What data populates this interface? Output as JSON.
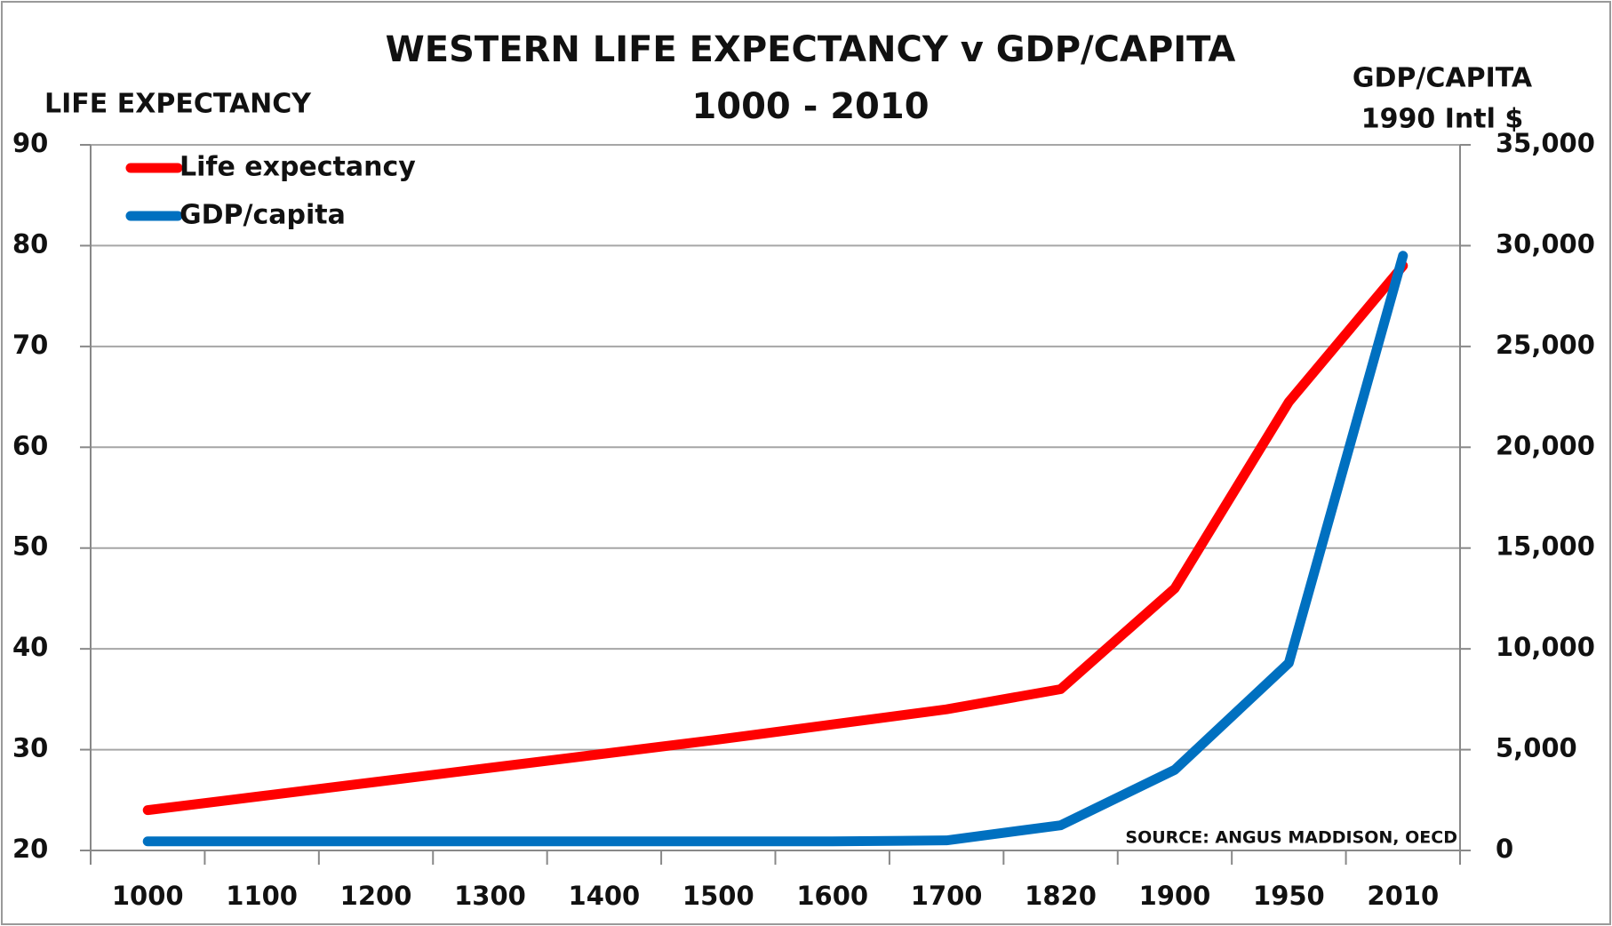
{
  "chart_data": {
    "type": "line",
    "title": "WESTERN LIFE EXPECTANCY v GDP/CAPITA",
    "subtitle": "1000 - 2010",
    "ylabel": "LIFE EXPECTANCY",
    "y2label": [
      "GDP/CAPITA",
      "1990 Intl $"
    ],
    "annotation": "SOURCE: ANGUS MADDISON, OECD",
    "categories": [
      "1000",
      "1100",
      "1200",
      "1300",
      "1400",
      "1500",
      "1600",
      "1700",
      "1820",
      "1900",
      "1950",
      "2010"
    ],
    "series": [
      {
        "name": "Life expectancy",
        "color": "#ff0000",
        "values": [
          24,
          25.4,
          26.8,
          28.2,
          29.6,
          31,
          32.5,
          34,
          36,
          46,
          64.5,
          78
        ]
      },
      {
        "name": "GDP/capita",
        "color": "#0070c0",
        "axis": "y2",
        "values": [
          450,
          450,
          450,
          450,
          450,
          450,
          450,
          500,
          1250,
          4000,
          9300,
          29500
        ]
      }
    ],
    "ylim": [
      20,
      90
    ],
    "yticks": [
      20,
      30,
      40,
      50,
      60,
      70,
      80,
      90
    ],
    "y2lim": [
      0,
      35000
    ],
    "y2ticks": [
      0,
      {
        "value": 5000,
        "label": "5,000"
      },
      {
        "value": 10000,
        "label": "10,000"
      },
      {
        "value": 15000,
        "label": "15,000"
      },
      {
        "value": 20000,
        "label": "20,000"
      },
      {
        "value": 25000,
        "label": "25,000"
      },
      {
        "value": 30000,
        "label": "30,000"
      },
      {
        "value": 35000,
        "label": "35,000"
      }
    ],
    "grid": true,
    "legend": "top-left"
  }
}
